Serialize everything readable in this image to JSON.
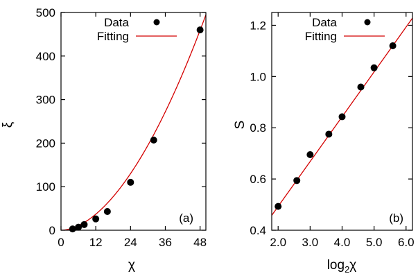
{
  "chart_data": [
    {
      "type": "scatter",
      "panel_label": "(a)",
      "xlabel": "χ",
      "ylabel": "ξ",
      "xlim": [
        0,
        50
      ],
      "ylim": [
        0,
        500
      ],
      "xticks": [
        0,
        12,
        24,
        36,
        48
      ],
      "yticks": [
        0,
        100,
        200,
        300,
        400,
        500
      ],
      "legend_position": "top-right",
      "series": [
        {
          "name": "Data",
          "kind": "points",
          "color": "#000000",
          "x": [
            4,
            6,
            8,
            12,
            16,
            24,
            32,
            48
          ],
          "y": [
            3,
            7,
            13,
            26,
            43,
            110,
            207,
            460
          ]
        },
        {
          "name": "Fitting",
          "kind": "line",
          "color": "#d40000",
          "fit": {
            "form": "a*x^b",
            "a": 0.4,
            "b": 1.82
          }
        }
      ]
    },
    {
      "type": "scatter",
      "panel_label": "(b)",
      "xlabel_base": "log",
      "xlabel_sub": "2",
      "xlabel_var": "χ",
      "ylabel": "S",
      "xlim": [
        1.8,
        6.2
      ],
      "ylim": [
        0.4,
        1.25
      ],
      "xticks": [
        "2.0",
        "3.0",
        "4.0",
        "5.0",
        "6.0"
      ],
      "yticks": [
        "0.4",
        "0.6",
        "0.8",
        "1.0",
        "1.2"
      ],
      "legend_position": "top-right",
      "series": [
        {
          "name": "Data",
          "kind": "points",
          "color": "#000000",
          "x": [
            2.0,
            2.585,
            3.0,
            3.585,
            4.0,
            4.585,
            5.0,
            5.585
          ],
          "y": [
            0.493,
            0.594,
            0.695,
            0.775,
            0.843,
            0.959,
            1.034,
            1.12
          ]
        },
        {
          "name": "Fitting",
          "kind": "line",
          "color": "#d40000",
          "fit": {
            "form": "m*x+c",
            "m": 0.175,
            "c": 0.143
          }
        }
      ]
    }
  ]
}
